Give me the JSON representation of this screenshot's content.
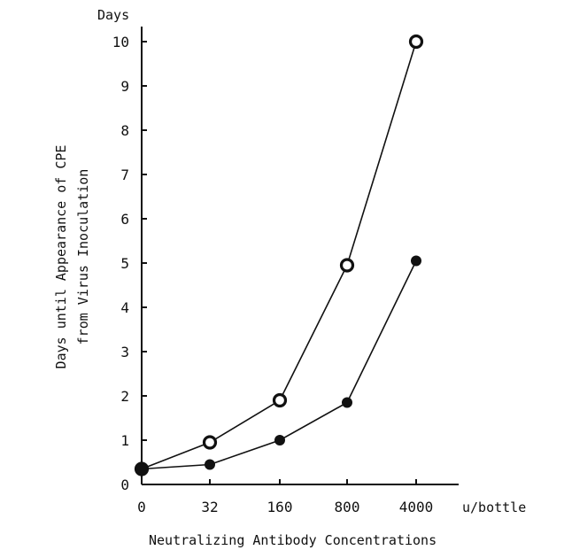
{
  "chart_data": {
    "type": "line",
    "y_unit_label": "Days",
    "ylabel_line1": "Days until Appearance of CPE",
    "ylabel_line2": "from Virus Inoculation",
    "xlabel": "Neutralizing Antibody Concentrations",
    "x_unit_label": "u/bottle",
    "categories": [
      "0",
      "32",
      "160",
      "800",
      "4000"
    ],
    "yticks": [
      0,
      1,
      2,
      3,
      4,
      5,
      6,
      7,
      8,
      9,
      10
    ],
    "ylim": [
      0,
      10
    ],
    "grid": false,
    "series": [
      {
        "marker": "open-circle",
        "values": [
          0.35,
          0.95,
          1.9,
          4.95,
          10.0
        ]
      },
      {
        "marker": "filled-circle",
        "values": [
          0.35,
          0.45,
          1.0,
          1.85,
          5.05
        ]
      }
    ]
  }
}
